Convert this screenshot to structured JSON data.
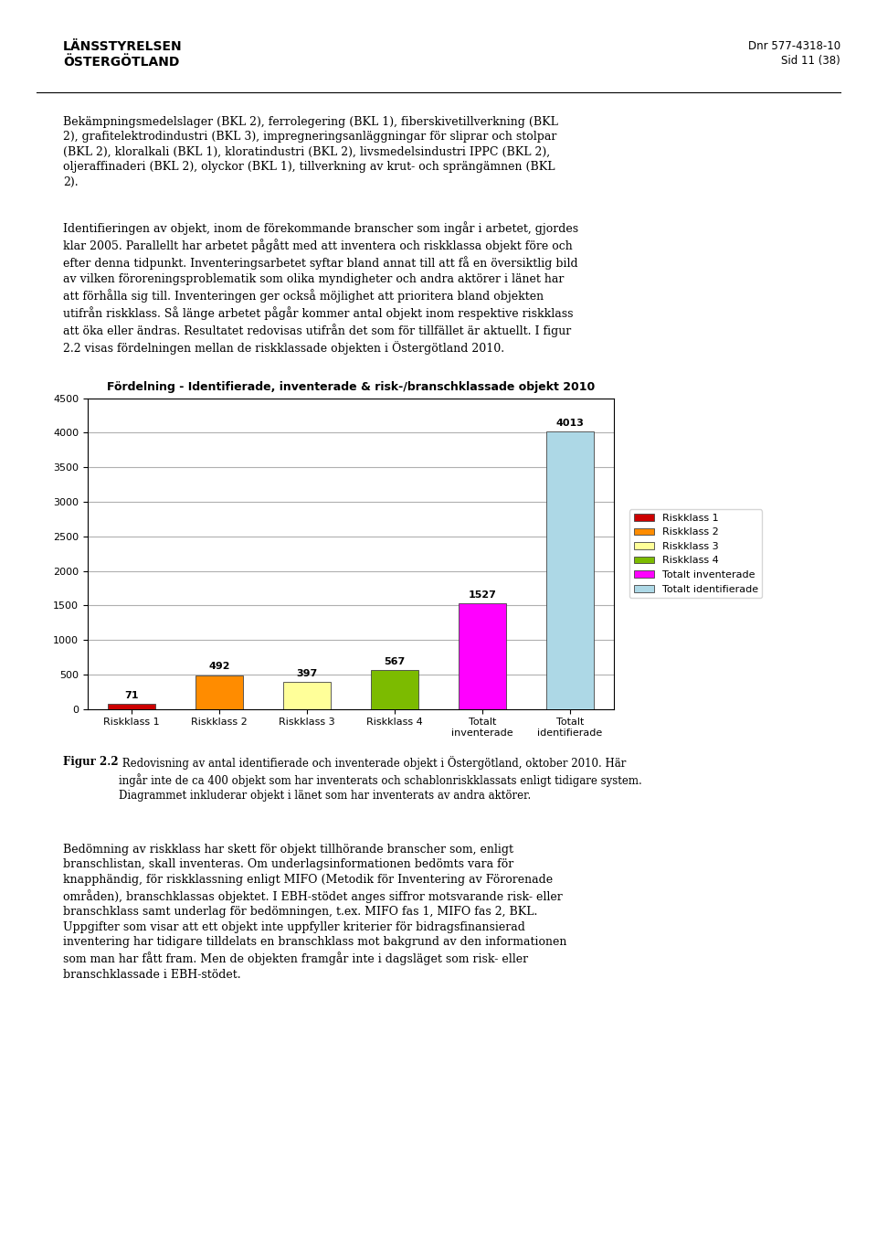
{
  "chart_data": {
    "type": "bar",
    "title": "Fördelning - Identifierade, inventerade & risk-/branschklassade objekt 2010",
    "categories": [
      "Riskklass 1",
      "Riskklass 2",
      "Riskklass 3",
      "Riskklass 4",
      "Totalt\ninventerade",
      "Totalt\nidentifierade"
    ],
    "series": [
      {
        "name": "Riskklass 1",
        "color": "#CC0000",
        "values": [
          71,
          null,
          null,
          null,
          null,
          null
        ]
      },
      {
        "name": "Riskklass 2",
        "color": "#FF8C00",
        "values": [
          null,
          492,
          null,
          null,
          null,
          null
        ]
      },
      {
        "name": "Riskklass 3",
        "color": "#FFFF99",
        "values": [
          null,
          null,
          397,
          null,
          null,
          null
        ]
      },
      {
        "name": "Riskklass 4",
        "color": "#7CBB00",
        "values": [
          null,
          null,
          null,
          567,
          null,
          null
        ]
      },
      {
        "name": "Totalt inventerade",
        "color": "#FF00FF",
        "values": [
          null,
          null,
          null,
          null,
          1527,
          null
        ]
      },
      {
        "name": "Totalt identifierade",
        "color": "#ADD8E6",
        "values": [
          null,
          null,
          null,
          null,
          null,
          4013
        ]
      }
    ],
    "ylim": [
      0,
      4500
    ],
    "yticks": [
      0,
      500,
      1000,
      1500,
      2000,
      2500,
      3000,
      3500,
      4000,
      4500
    ],
    "grid": true,
    "legend": "center left",
    "data_labels": true,
    "annotations": [
      "LÄNSSTYRELSEN\nÖSTERGÖTLAND",
      "Dnr 577-4318-10\nSid 11 (38)",
      "Bekämpningsmedelslager (BKL 2), ferrolegering (BKL 1), fiberskivetillverkning (BKL\n2), grafitelektrodindustri (BKL 3), impregneringsanläggningar för sliprar och stolpar\n(BKL 2), kloralkali (BKL 1), kloratindustri (BKL 2), livsmedelsindustri IPPC (BKL 2),\noljeraffinaderi (BKL 2), olyckor (BKL 1), tillverkning av krut- och sprängämnen (BKL\n2).",
      "Identifieringen av objekt, inom de förekommande branscher som ingår i arbetet, gjordes\nklar 2005. Parallellt har arbetet pågått med att inventera och riskklassa objekt före och\nefter denna tidpunkt. Inventeringsarbetet syftar bland annat till att få en översiktlig bild\nav vilken föroreningsproblematik som olika myndigheter och andra aktörer i länet har\natt förhålla sig till. Inventeringen ger också möjlighet att prioritera bland objekten\nutifrån riskklass. Så länge arbetet pågår kommer antal objekt inom respektive riskklass\natt öka eller ändras. Resultatet redovisas utifrån det som för tillfället är aktuellt. I figur\n2.2 visas fördelningen mellan de riskklassade objekten i Östergötland 2010.",
      "Figur 2.2",
      " Redovisning av antal identifierade och inventerade objekt i Östergötland, oktober 2010. Här\ningår inte de ca 400 objekt som har inventerats och schablonriskklassats enligt tidigare system.\nDiagrammet inkluderar objekt i länet som har inventerats av andra aktörer.",
      "Bedömning av riskklass har skett för objekt tillhörande branscher som, enligt\nbranschlistan, skall inventeras. Om underlagsinformationen bedömts vara för\nknapphändig, för riskklassning enligt MIFO (Metodik för Inventering av Förorenade\nområden), branschklassas objektet. I EBH-stödet anges siffror motsvarande risk- eller\nbranschklass samt underlag för bedömningen, t.ex. MIFO fas 1, MIFO fas 2, BKL.\nUppgifter som visar att ett objekt inte uppfyller kriterier för bidragsfinansierad\ninventering har tidigare tilldelats en branschklass mot bakgrund av den informationen\nsom man har fått fram. Men de objekten framgår inte i dagsläget som risk- eller\nbranschklassade i EBH-stödet."
    ]
  }
}
